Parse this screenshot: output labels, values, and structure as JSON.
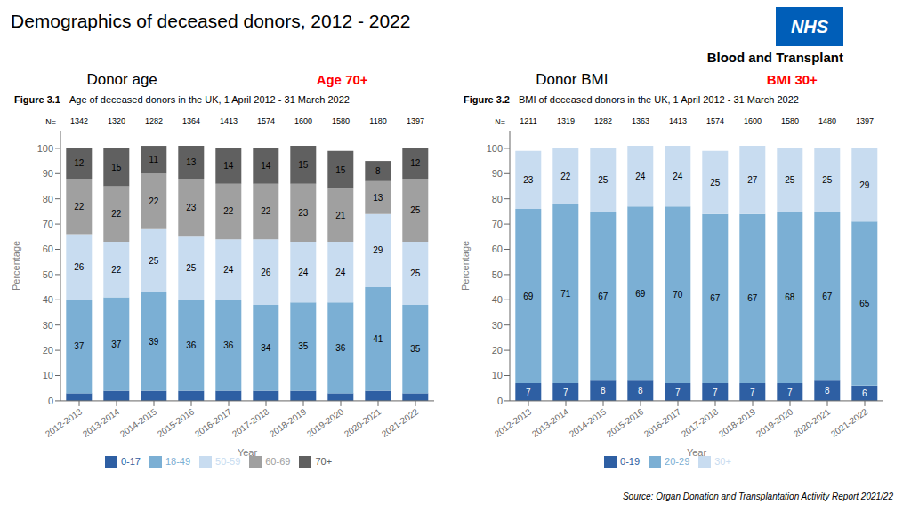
{
  "title": "Demographics of deceased donors, 2012 - 2022",
  "logo_text": "NHS",
  "organisation": "Blood and Transplant",
  "source": "Source: Organ Donation and Transplantation Activity Report 2021/22",
  "chart_data": [
    {
      "type": "bar",
      "stacked": true,
      "subtitle": "Donor age",
      "highlight": {
        "text": "Age 70+",
        "color": "red"
      },
      "figure_label": "Figure 3.1",
      "figure_subtitle": "Age of deceased donors in the UK, 1 April 2012 - 31 March 2022",
      "categories": [
        "2012-2013",
        "2013-2014",
        "2014-2015",
        "2015-2016",
        "2016-2017",
        "2017-2018",
        "2018-2019",
        "2019-2020",
        "2020-2021",
        "2021-2022"
      ],
      "n_label": "N=",
      "n_values": [
        1342,
        1320,
        1282,
        1364,
        1413,
        1574,
        1600,
        1580,
        1180,
        1397
      ],
      "series": [
        {
          "name": "0-17",
          "color": "#2E5FA3",
          "values": [
            3,
            4,
            4,
            4,
            4,
            4,
            4,
            3,
            4,
            3
          ],
          "data_labels": false
        },
        {
          "name": "18-49",
          "color": "#7BAFD4",
          "values": [
            37,
            37,
            39,
            36,
            36,
            34,
            35,
            36,
            41,
            35
          ],
          "data_labels": true
        },
        {
          "name": "50-59",
          "color": "#C8DCF0",
          "values": [
            26,
            22,
            25,
            25,
            24,
            26,
            24,
            24,
            29,
            25
          ],
          "data_labels": true
        },
        {
          "name": "60-69",
          "color": "#A0A0A0",
          "values": [
            22,
            22,
            22,
            23,
            22,
            22,
            23,
            21,
            13,
            25
          ],
          "data_labels": true
        },
        {
          "name": "70+",
          "color": "#606060",
          "values": [
            12,
            15,
            11,
            13,
            14,
            14,
            15,
            15,
            8,
            12
          ],
          "data_labels": true
        }
      ],
      "xlabel": "Year",
      "ylabel": "Percentage",
      "ylim": [
        0,
        107
      ],
      "yticks": [
        0,
        10,
        20,
        30,
        40,
        50,
        60,
        70,
        80,
        90,
        100
      ],
      "grid": false,
      "legend": "bottom"
    },
    {
      "type": "bar",
      "stacked": true,
      "subtitle": "Donor BMI",
      "highlight": {
        "text": "BMI 30+",
        "color": "red"
      },
      "figure_label": "Figure 3.2",
      "figure_subtitle": "BMI of deceased donors in the UK, 1 April 2012 - 31 March 2022",
      "categories": [
        "2012-2013",
        "2013-2014",
        "2014-2015",
        "2015-2016",
        "2016-2017",
        "2017-2018",
        "2018-2019",
        "2019-2020",
        "2020-2021",
        "2021-2022"
      ],
      "n_label": "N=",
      "n_values": [
        1211,
        1319,
        1282,
        1363,
        1413,
        1574,
        1600,
        1580,
        1480,
        1397
      ],
      "series": [
        {
          "name": "0-19",
          "color": "#2E5FA3",
          "values": [
            7,
            7,
            8,
            8,
            7,
            7,
            7,
            7,
            8,
            6
          ],
          "data_labels": true
        },
        {
          "name": "20-29",
          "color": "#7BAFD4",
          "values": [
            69,
            71,
            67,
            69,
            70,
            67,
            67,
            68,
            67,
            65
          ],
          "data_labels": true
        },
        {
          "name": "30+",
          "color": "#C8DCF0",
          "values": [
            23,
            22,
            25,
            24,
            24,
            25,
            27,
            25,
            25,
            29
          ],
          "data_labels": true
        }
      ],
      "xlabel": "Year",
      "ylabel": "Percentage",
      "ylim": [
        0,
        107
      ],
      "yticks": [
        0,
        10,
        20,
        30,
        40,
        50,
        60,
        70,
        80,
        90,
        100
      ],
      "grid": false,
      "legend": "bottom"
    }
  ]
}
